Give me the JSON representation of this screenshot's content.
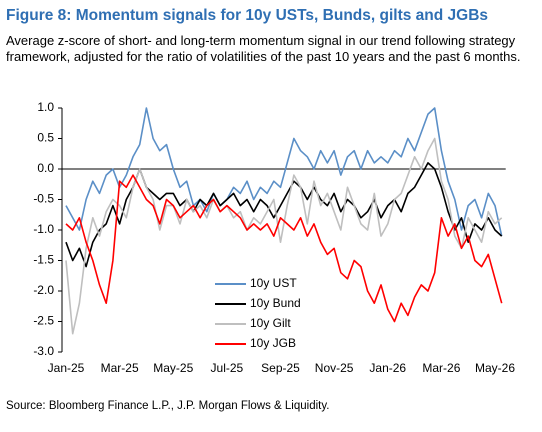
{
  "header": {
    "title": "Figure 8: Momentum signals for 10y USTs, Bunds, gilts and JGBs",
    "subtitle": "Average z-score of short- and long-term momentum signal in our trend following strategy framework, adjusted for the ratio of volatilities of the past 10 years and the past 6 months."
  },
  "chart_data": {
    "type": "line",
    "categories": [
      "Jan-25",
      null,
      null,
      null,
      null,
      null,
      null,
      null,
      "Mar-25",
      null,
      null,
      null,
      null,
      null,
      null,
      null,
      "May-25",
      null,
      null,
      null,
      null,
      null,
      null,
      null,
      "Jul-25",
      null,
      null,
      null,
      null,
      null,
      null,
      null,
      "Sep-25",
      null,
      null,
      null,
      null,
      null,
      null,
      null,
      "Nov-25",
      null,
      null,
      null,
      null,
      null,
      null,
      null,
      "Jan-26",
      null,
      null,
      null,
      null,
      null,
      null,
      null,
      "Mar-26",
      null,
      null,
      null,
      null,
      null,
      null,
      null,
      "May-26",
      null
    ],
    "series": [
      {
        "name": "10y UST",
        "color": "#5b8fc7",
        "values": [
          -0.6,
          -0.8,
          -1.0,
          -0.5,
          -0.2,
          -0.4,
          -0.1,
          0.0,
          -0.3,
          -0.1,
          0.2,
          0.4,
          1.0,
          0.5,
          0.3,
          0.4,
          0.0,
          -0.3,
          -0.2,
          -0.6,
          -0.5,
          -0.7,
          -0.4,
          -0.6,
          -0.5,
          -0.3,
          -0.4,
          -0.2,
          -0.5,
          -0.3,
          -0.4,
          -0.2,
          -0.3,
          0.1,
          0.5,
          0.3,
          0.2,
          0.0,
          0.3,
          0.1,
          0.3,
          -0.1,
          0.2,
          0.3,
          0.0,
          0.3,
          0.1,
          0.2,
          0.1,
          0.3,
          0.2,
          0.5,
          0.3,
          0.6,
          0.9,
          1.0,
          0.3,
          -0.2,
          -0.5,
          -1.0,
          -0.6,
          -0.5,
          -0.8,
          -0.4,
          -0.6,
          -1.1
        ]
      },
      {
        "name": "10y Bund",
        "color": "#000000",
        "values": [
          -1.2,
          -1.5,
          -1.3,
          -1.6,
          -1.2,
          -1.0,
          -0.9,
          -0.6,
          -0.9,
          -0.5,
          -0.3,
          0.0,
          -0.3,
          -0.4,
          -0.5,
          -0.4,
          -0.4,
          -0.6,
          -0.5,
          -0.7,
          -0.5,
          -0.6,
          -0.4,
          -0.6,
          -0.5,
          -0.4,
          -0.6,
          -0.5,
          -0.7,
          -0.5,
          -0.6,
          -0.8,
          -0.6,
          -0.4,
          -0.2,
          -0.3,
          -0.5,
          -0.3,
          -0.5,
          -0.6,
          -0.4,
          -0.7,
          -0.5,
          -0.6,
          -0.8,
          -0.7,
          -0.5,
          -0.8,
          -0.6,
          -0.5,
          -0.7,
          -0.4,
          -0.3,
          -0.1,
          0.1,
          0.0,
          -0.3,
          -0.7,
          -1.0,
          -0.8,
          -1.2,
          -0.9,
          -1.0,
          -0.8,
          -1.0,
          -1.1
        ]
      },
      {
        "name": "10y Gilt",
        "color": "#bfbfbf",
        "values": [
          -1.5,
          -2.7,
          -2.2,
          -1.3,
          -0.8,
          -1.1,
          -0.7,
          -0.5,
          -0.6,
          -0.8,
          -0.3,
          0.0,
          -0.3,
          -0.5,
          -1.0,
          -0.6,
          -0.6,
          -0.9,
          -0.5,
          -0.7,
          -0.6,
          -0.8,
          -0.5,
          -0.7,
          -0.6,
          -0.8,
          -0.7,
          -1.0,
          -0.8,
          -0.9,
          -0.7,
          -0.5,
          -1.2,
          -0.6,
          -0.1,
          -0.3,
          -0.9,
          -0.2,
          -0.6,
          -0.4,
          -0.7,
          -1.0,
          -0.3,
          -0.6,
          -0.9,
          -1.0,
          -0.4,
          -1.1,
          -0.9,
          -0.5,
          -0.4,
          -0.1,
          0.2,
          0.0,
          0.3,
          0.5,
          -0.2,
          -0.5,
          -1.1,
          -1.3,
          -0.8,
          -1.0,
          -1.2,
          -0.7,
          -0.9,
          -0.8
        ]
      },
      {
        "name": "10y JGB",
        "color": "#ff0000",
        "values": [
          -0.9,
          -1.0,
          -0.8,
          -1.2,
          -1.5,
          -1.9,
          -2.2,
          -1.5,
          -0.2,
          -0.3,
          -0.1,
          -0.3,
          -0.5,
          -0.6,
          -0.9,
          -0.5,
          -0.6,
          -0.8,
          -0.7,
          -0.6,
          -0.8,
          -0.6,
          -0.5,
          -0.7,
          -0.6,
          -0.7,
          -0.8,
          -1.0,
          -0.9,
          -1.0,
          -0.9,
          -1.1,
          -0.8,
          -0.9,
          -1.0,
          -0.8,
          -1.1,
          -0.9,
          -1.2,
          -1.4,
          -1.3,
          -1.7,
          -1.8,
          -1.5,
          -1.6,
          -2.0,
          -2.2,
          -1.9,
          -2.3,
          -2.5,
          -2.2,
          -2.4,
          -2.1,
          -1.9,
          -2.0,
          -1.7,
          -0.8,
          -1.1,
          -0.9,
          -1.3,
          -1.1,
          -1.5,
          -1.6,
          -1.4,
          -1.8,
          -2.2
        ]
      }
    ],
    "ylim": [
      -3,
      1
    ],
    "yticks": [
      {
        "value": -3,
        "label": "-3.0"
      },
      -2.5,
      {
        "value": -2,
        "label": "-2.0"
      },
      -1.5,
      {
        "value": -1,
        "label": "-1.0"
      },
      -0.5,
      {
        "value": 0,
        "label": "0.0"
      },
      0.5,
      {
        "value": 1,
        "label": "1.0"
      }
    ],
    "grid": false
  },
  "footer": {
    "source": "Source: Bloomberg Finance L.P., J.P. Morgan Flows & Liquidity."
  }
}
